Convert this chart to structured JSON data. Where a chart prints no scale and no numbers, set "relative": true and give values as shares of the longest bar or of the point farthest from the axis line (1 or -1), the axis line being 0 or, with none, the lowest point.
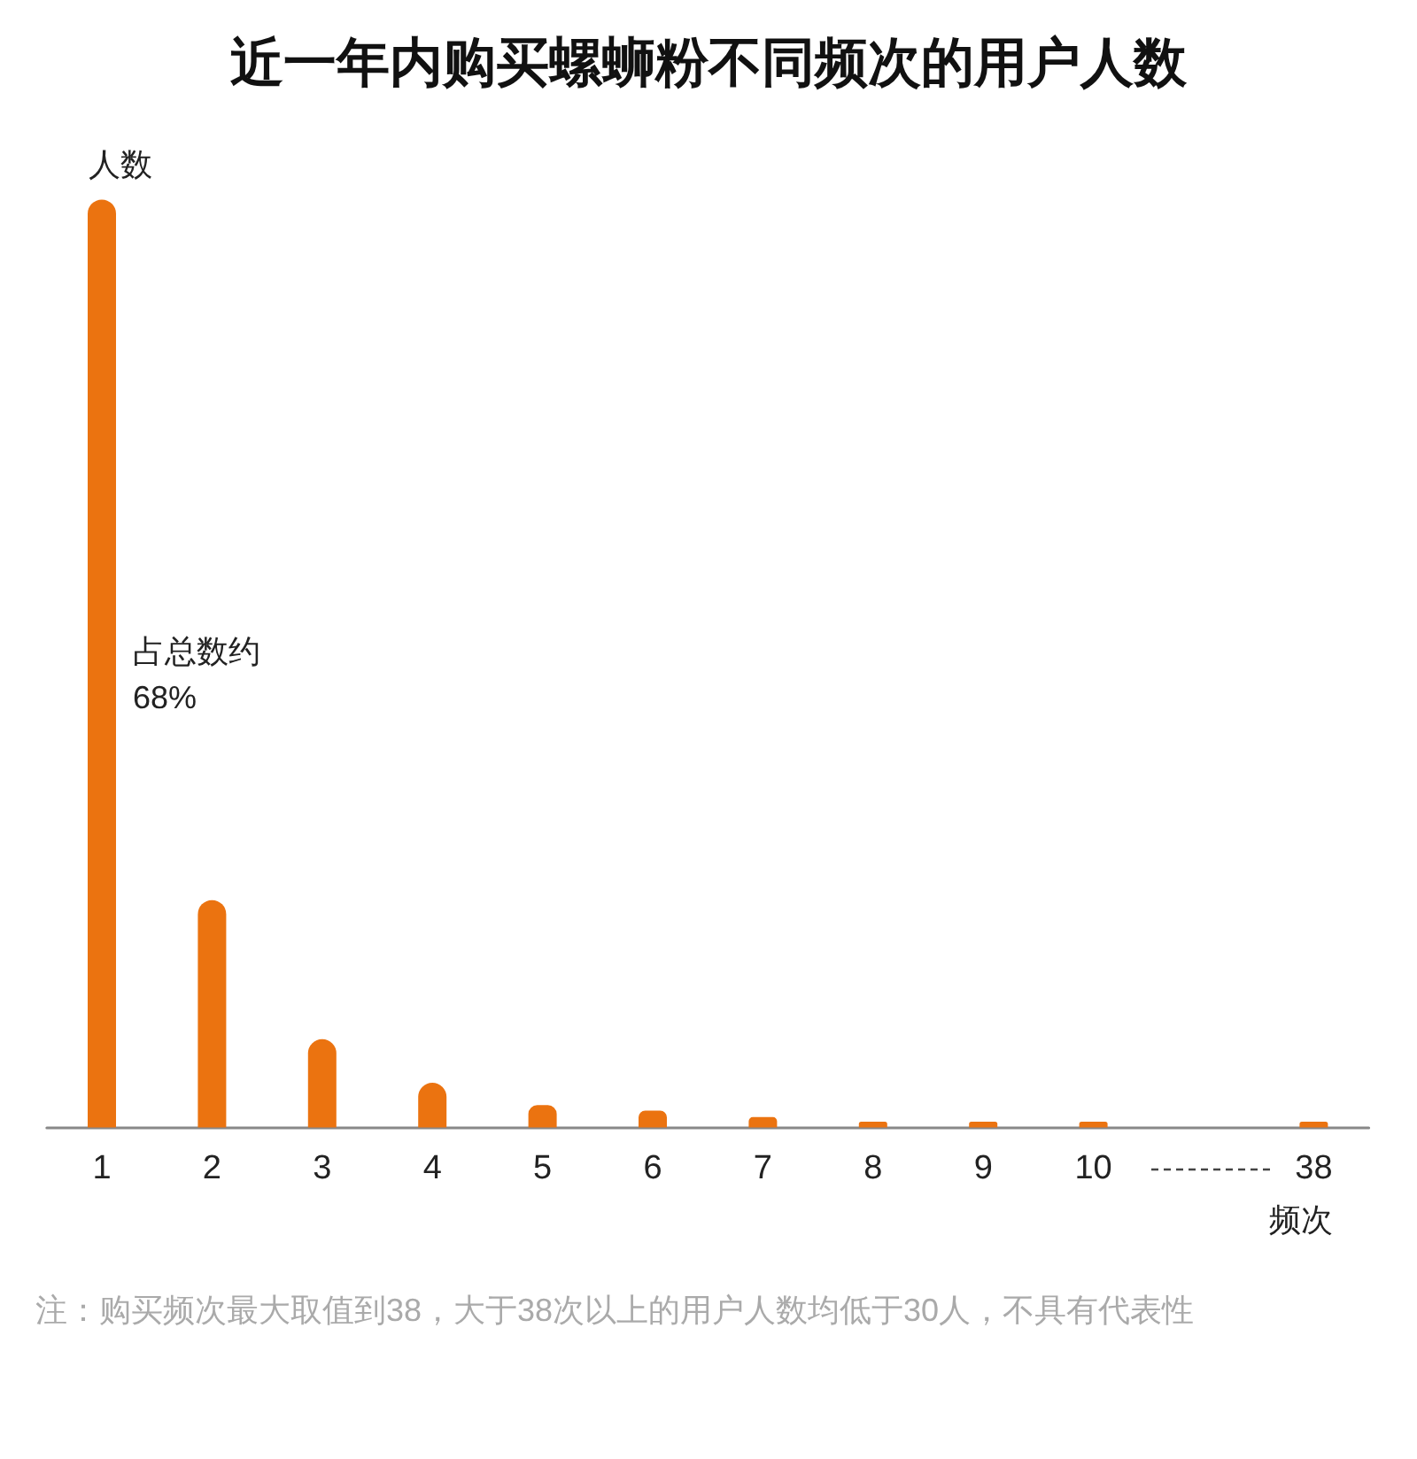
{
  "chart_data": {
    "type": "bar",
    "title": "近一年内购买螺蛳粉不同频次的用户人数",
    "xlabel": "频次",
    "ylabel": "人数",
    "categories": [
      "1",
      "2",
      "3",
      "4",
      "5",
      "6",
      "7",
      "8",
      "9",
      "10",
      null,
      "38"
    ],
    "values": [
      1,
      0.245,
      0.095,
      0.048,
      0.024,
      0.018,
      0.011,
      0.006,
      0.006,
      0.006,
      null,
      0.006
    ],
    "color": "#eb7310",
    "relative": true,
    "annotations": [
      "占总数约\n68%",
      "注：购买频次最大取值到38，大于38次以上的用户人数均低于30人，不具有代表性"
    ]
  }
}
